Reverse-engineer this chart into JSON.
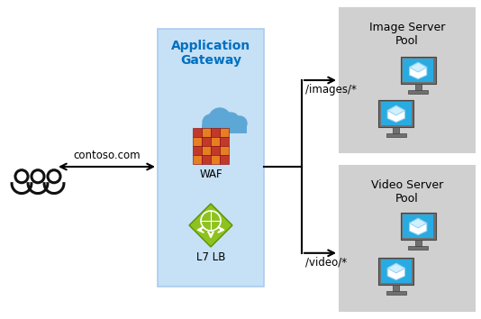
{
  "bg_color": "#ffffff",
  "gateway_box_color": "#c6e0f5",
  "gateway_box_edge": "#aaccee",
  "server_pool_bg": "#d0d0d0",
  "title_color": "#0070c0",
  "title_text": "Application\nGateway",
  "waf_label": "WAF",
  "lb_label": "L7 LB",
  "images_label": "/images/*",
  "video_label": "/video/*",
  "image_pool_label": "Image Server\nPool",
  "video_pool_label": "Video Server\nPool",
  "contoso_label": "contoso.com",
  "arrow_color": "#000000",
  "text_color": "#000000",
  "monitor_body": "#707070",
  "monitor_screen": "#29abe2",
  "waf_dark": "#c0392b",
  "waf_light": "#e67e22",
  "cloud_color": "#5da7d6",
  "diamond_color": "#8dc21f",
  "diamond_edge": "#5a9200"
}
